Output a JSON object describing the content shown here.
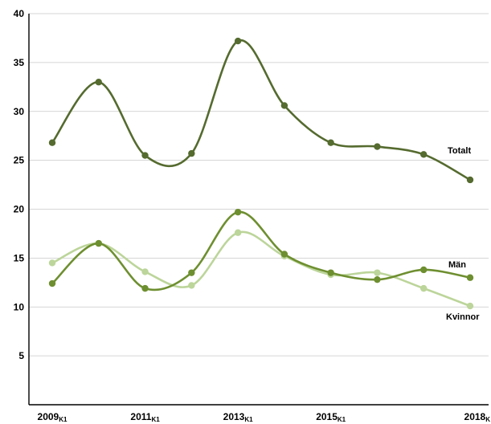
{
  "chart_data": {
    "type": "line",
    "title": "",
    "xlabel": "",
    "ylabel": "",
    "x": [
      2009,
      2010,
      2011,
      2012,
      2013,
      2014,
      2015,
      2016,
      2017,
      2018
    ],
    "x_tick_labels": [
      {
        "x": 2009,
        "main": "2009",
        "sub": "K1"
      },
      {
        "x": 2011,
        "main": "2011",
        "sub": "K1"
      },
      {
        "x": 2013,
        "main": "2013",
        "sub": "K1"
      },
      {
        "x": 2015,
        "main": "2015",
        "sub": "K1"
      },
      {
        "x": 2018,
        "main": "2018",
        "sub": "K"
      }
    ],
    "y_ticks": [
      "5",
      "10",
      "15",
      "20",
      "25",
      "30",
      "35",
      "40"
    ],
    "ylim": [
      0,
      40
    ],
    "xlim": [
      2009,
      2018
    ],
    "grid": "horizontal",
    "legend": "inline labels at line ends",
    "series": [
      {
        "name": "Totalt",
        "color": "#556B2F",
        "values": [
          26.8,
          33.0,
          25.5,
          25.7,
          37.2,
          30.6,
          26.8,
          26.4,
          25.6,
          23.0
        ]
      },
      {
        "name": "Män",
        "color": "#6E8F30",
        "values": [
          12.4,
          16.5,
          11.9,
          13.5,
          19.7,
          15.4,
          13.5,
          12.8,
          13.8,
          13.0
        ]
      },
      {
        "name": "Kvinnor",
        "color": "#BCD59A",
        "values": [
          14.5,
          16.5,
          13.6,
          12.2,
          17.6,
          15.2,
          13.3,
          13.5,
          11.9,
          10.1
        ]
      }
    ]
  }
}
